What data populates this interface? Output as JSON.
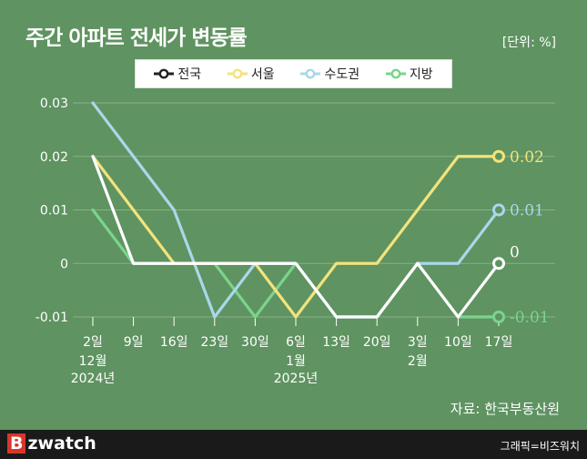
{
  "header": {
    "title": "주간 아파트 전세가 변동률",
    "unit": "[단위: %]"
  },
  "source": "자료: 한국부동산원",
  "footer": {
    "brand_b": "B",
    "brand_rest": "zwatch",
    "credit": "그래픽=비즈워치"
  },
  "chart_data": {
    "type": "line",
    "x": [
      "2일",
      "9일",
      "16일",
      "23일",
      "30일",
      "6일",
      "13일",
      "20일",
      "3일",
      "10일",
      "17일"
    ],
    "x_sublabels": [
      [
        "12월",
        "2024년"
      ],
      [],
      [],
      [],
      [],
      [
        "1월",
        "2025년"
      ],
      [],
      [],
      [
        "2월"
      ],
      [],
      []
    ],
    "ylim": [
      -0.01,
      0.03
    ],
    "yticks": [
      "0.03",
      "0.02",
      "0.01",
      "0",
      "-0.01"
    ],
    "grid": true,
    "legend_position": "top",
    "series": [
      {
        "name": "전국",
        "color": "#ffffff",
        "values": [
          0.02,
          0,
          0,
          0,
          0,
          0,
          -0.01,
          -0.01,
          0,
          -0.01,
          0
        ],
        "end_label": "0"
      },
      {
        "name": "서울",
        "color": "#f3e37c",
        "values": [
          0.02,
          0.01,
          0,
          0,
          0,
          -0.01,
          0,
          0,
          0.01,
          0.02,
          0.02
        ],
        "end_label": "0.02"
      },
      {
        "name": "수도권",
        "color": "#a8d8ea",
        "values": [
          0.03,
          0.02,
          0.01,
          -0.01,
          0,
          0,
          -0.01,
          -0.01,
          0,
          0,
          0.01
        ],
        "end_label": "0.01"
      },
      {
        "name": "지방",
        "color": "#7ad48c",
        "values": [
          0.01,
          0,
          0,
          0,
          -0.01,
          0,
          -0.01,
          -0.01,
          0,
          -0.01,
          -0.01
        ],
        "end_label": "-0.01"
      }
    ]
  }
}
